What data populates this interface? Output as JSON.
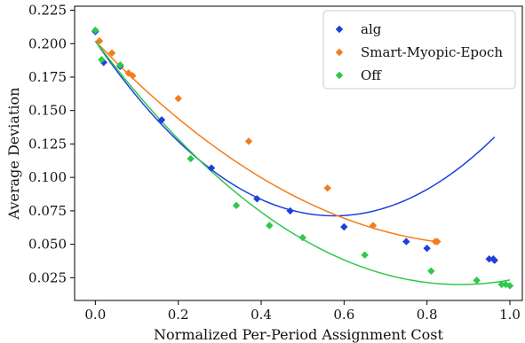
{
  "chart_data": {
    "type": "scatter",
    "title": "",
    "xlabel": "Normalized Per-Period Assignment Cost",
    "ylabel": "Average Deviation",
    "xlim": [
      -0.05,
      1.03
    ],
    "ylim": [
      0.008,
      0.228
    ],
    "xticks": [
      0.0,
      0.2,
      0.4,
      0.6,
      0.8,
      1.0
    ],
    "xtick_labels": [
      "0.0",
      "0.2",
      "0.4",
      "0.6",
      "0.8",
      "1.0"
    ],
    "yticks": [
      0.025,
      0.05,
      0.075,
      0.1,
      0.125,
      0.15,
      0.175,
      0.2,
      0.225
    ],
    "ytick_labels": [
      "0.025",
      "0.050",
      "0.075",
      "0.100",
      "0.125",
      "0.150",
      "0.175",
      "0.200",
      "0.225"
    ],
    "grid": false,
    "legend_position": "top-right",
    "series": [
      {
        "name": "alg",
        "color": "#1f3fdc",
        "marker": "diamond",
        "x": [
          0.0,
          0.02,
          0.06,
          0.16,
          0.28,
          0.39,
          0.47,
          0.6,
          0.75,
          0.8,
          0.95,
          0.96,
          0.963
        ],
        "y": [
          0.209,
          0.186,
          0.183,
          0.143,
          0.107,
          0.084,
          0.075,
          0.063,
          0.052,
          0.047,
          0.039,
          0.039,
          0.038
        ],
        "fit": [
          0.202,
          -0.4537,
          0.3937
        ]
      },
      {
        "name": "Smart-Myopic-Epoch",
        "color": "#f47c1c",
        "marker": "diamond",
        "x": [
          0.01,
          0.04,
          0.06,
          0.08,
          0.09,
          0.2,
          0.37,
          0.56,
          0.67,
          0.82,
          0.825
        ],
        "y": [
          0.202,
          0.193,
          0.184,
          0.178,
          0.176,
          0.159,
          0.127,
          0.092,
          0.064,
          0.052,
          0.052
        ],
        "fit": [
          0.202,
          -0.3246,
          0.1729
        ]
      },
      {
        "name": "Off",
        "color": "#2ec84a",
        "marker": "diamond",
        "x": [
          0.0,
          0.015,
          0.06,
          0.23,
          0.34,
          0.42,
          0.5,
          0.65,
          0.81,
          0.92,
          0.98,
          0.99,
          1.0
        ],
        "y": [
          0.21,
          0.188,
          0.184,
          0.114,
          0.079,
          0.064,
          0.055,
          0.042,
          0.03,
          0.023,
          0.02,
          0.02,
          0.019
        ],
        "fit": [
          0.202,
          -0.414,
          0.2353
        ]
      }
    ]
  }
}
